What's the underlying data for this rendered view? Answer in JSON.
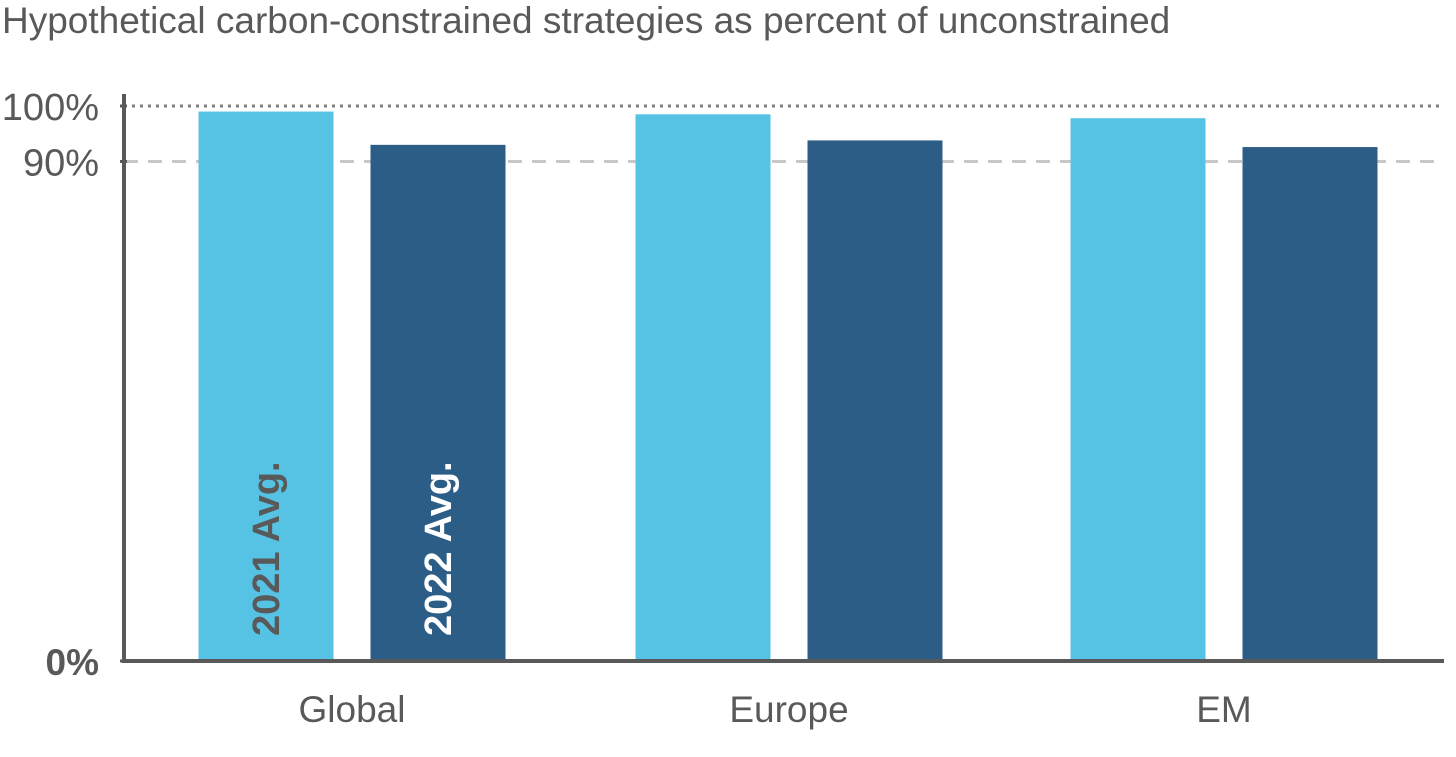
{
  "chart_data": {
    "type": "bar",
    "title": "Hypothetical carbon-constrained strategies as percent of unconstrained",
    "categories": [
      "Global",
      "Europe",
      "EM"
    ],
    "series": [
      {
        "name": "2021 Avg.",
        "values": [
          99,
          98.5,
          97.8
        ],
        "color": "#56C3E5",
        "label_color": "#595959"
      },
      {
        "name": "2022 Avg.",
        "values": [
          93,
          93.8,
          92.6
        ],
        "color": "#2C5D87",
        "label_color": "#ffffff"
      }
    ],
    "yticks": [
      {
        "value": 0,
        "label": "0%"
      },
      {
        "value": 90,
        "label": "90%"
      },
      {
        "value": 100,
        "label": "100%"
      }
    ],
    "reference_lines": [
      {
        "value": 100,
        "style": "dotted"
      },
      {
        "value": 90,
        "style": "dashed"
      }
    ],
    "ylim": [
      0,
      100
    ],
    "xlabel": "",
    "ylabel": "",
    "axis_color": "#595959",
    "grid": false
  }
}
